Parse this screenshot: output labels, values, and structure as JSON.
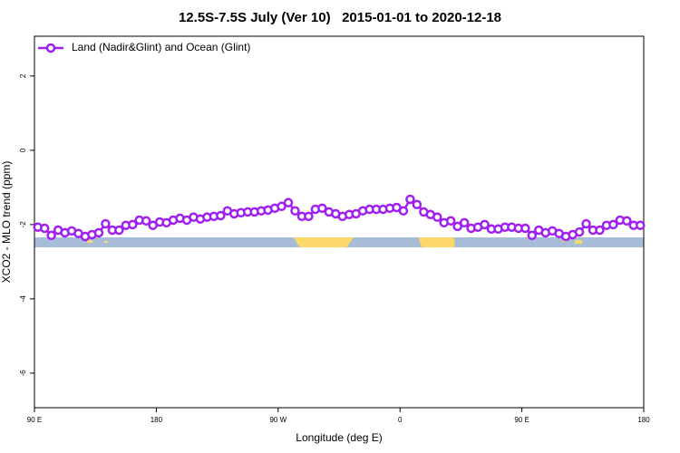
{
  "chart_data": {
    "type": "line",
    "title": "12.5S-7.5S July (Ver 10)   2015-01-01 to 2020-12-18",
    "x_label": "Longitude (deg E)",
    "y_label": "XCO2 - MLO trend (ppm)",
    "xlim": [
      90,
      540
    ],
    "ylim": [
      -6.93,
      3.07
    ],
    "xticks": [
      {
        "value": 90,
        "label": "90 E"
      },
      {
        "value": 180,
        "label": "180"
      },
      {
        "value": 270,
        "label": "90 W"
      },
      {
        "value": 360,
        "label": "0"
      },
      {
        "value": 450,
        "label": "90 E"
      },
      {
        "value": 540,
        "label": "180"
      }
    ],
    "yticks": [
      -6,
      -4,
      -2,
      0,
      2
    ],
    "legend": "upper left",
    "x": [
      92.5,
      97.5,
      102.5,
      107.5,
      112.5,
      117.5,
      122.5,
      127.5,
      132.5,
      137.5,
      142.5,
      147.5,
      152.5,
      157.5,
      162.5,
      167.5,
      172.5,
      177.5,
      182.5,
      187.5,
      192.5,
      197.5,
      202.5,
      207.5,
      212.5,
      217.5,
      222.5,
      227.5,
      232.5,
      237.5,
      242.5,
      247.5,
      252.5,
      257.5,
      262.5,
      267.5,
      272.5,
      277.5,
      282.5,
      287.5,
      292.5,
      297.5,
      302.5,
      307.5,
      312.5,
      317.5,
      322.5,
      327.5,
      332.5,
      337.5,
      342.5,
      347.5,
      352.5,
      357.5,
      362.5,
      367.5,
      372.5,
      377.5,
      382.5,
      387.5,
      392.5,
      397.5,
      402.5,
      407.5,
      412.5,
      417.5,
      422.5,
      427.5,
      432.5,
      437.5,
      442.5,
      447.5,
      452.5,
      457.5,
      462.5,
      467.5,
      472.5,
      477.5,
      482.5,
      487.5,
      492.5,
      497.5,
      502.5,
      507.5,
      512.5,
      517.5,
      522.5,
      527.5,
      532.5,
      537.5
    ],
    "series": [
      {
        "name": "Land (Nadir&Glint) and Ocean (Glint)",
        "color": "#a020f0",
        "values": [
          -2.07,
          -2.1,
          -2.29,
          -2.15,
          -2.22,
          -2.17,
          -2.24,
          -2.32,
          -2.27,
          -2.22,
          -1.98,
          -2.15,
          -2.15,
          -2.02,
          -2.0,
          -1.88,
          -1.9,
          -2.02,
          -1.93,
          -1.95,
          -1.88,
          -1.83,
          -1.88,
          -1.8,
          -1.85,
          -1.8,
          -1.78,
          -1.76,
          -1.63,
          -1.71,
          -1.68,
          -1.66,
          -1.66,
          -1.63,
          -1.61,
          -1.56,
          -1.51,
          -1.41,
          -1.63,
          -1.78,
          -1.78,
          -1.59,
          -1.56,
          -1.66,
          -1.71,
          -1.78,
          -1.73,
          -1.71,
          -1.63,
          -1.59,
          -1.59,
          -1.59,
          -1.56,
          -1.54,
          -1.63,
          -1.32,
          -1.46,
          -1.66,
          -1.73,
          -1.8,
          -1.95,
          -1.9,
          -2.05,
          -1.95,
          -2.1,
          -2.07,
          -2.0,
          -2.12,
          -2.12,
          -2.07,
          -2.07,
          -2.1,
          -2.1,
          -2.29,
          -2.15,
          -2.22,
          -2.17,
          -2.24,
          -2.32,
          -2.27,
          -2.2,
          -1.98,
          -2.15,
          -2.15,
          -2.02,
          -2.0,
          -1.88,
          -1.9,
          -2.02,
          -2.02
        ]
      }
    ]
  }
}
